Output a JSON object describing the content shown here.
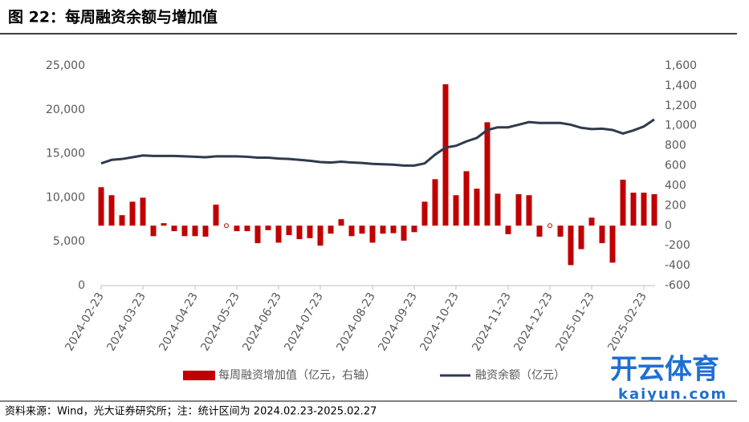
{
  "chart_data": {
    "type": "bar_line",
    "title": "图 22：每周融资余额与增加值",
    "source": "资料来源：Wind，光大证券研究所；注：统计区间为 2024.02.23-2025.02.27",
    "watermark": [
      "开云体育",
      "kaiyun.com"
    ],
    "categories": [
      "2024-02-23",
      null,
      null,
      null,
      "2024-03-23",
      null,
      null,
      null,
      null,
      "2024-04-23",
      null,
      null,
      null,
      "2024-05-23",
      null,
      null,
      null,
      "2024-06-23",
      null,
      null,
      null,
      "2024-07-23",
      null,
      null,
      null,
      null,
      "2024-08-23",
      null,
      null,
      null,
      "2024-09-23",
      null,
      null,
      null,
      "2024-10-23",
      null,
      null,
      null,
      null,
      "2024-11-23",
      null,
      null,
      null,
      "2024-12-23",
      null,
      null,
      null,
      "2025-01-23",
      null,
      null,
      null,
      null,
      "2025-02-23",
      null
    ],
    "series": [
      {
        "name": "每周融资增加值（亿元，右轴）",
        "color": "#c00000",
        "axis": "y2",
        "kind": "bar",
        "values": [
          385,
          305,
          105,
          240,
          280,
          -105,
          25,
          -55,
          -105,
          -105,
          -110,
          210,
          0,
          -55,
          -55,
          -175,
          -45,
          -170,
          -95,
          -135,
          -125,
          -200,
          -80,
          65,
          -105,
          -80,
          -170,
          -80,
          -75,
          -150,
          -65,
          240,
          465,
          1415,
          305,
          545,
          370,
          1035,
          320,
          -85,
          315,
          305,
          -110,
          0,
          -110,
          -395,
          -235,
          80,
          -175,
          -370,
          460,
          330,
          330,
          315
        ]
      },
      {
        "name": "融资余额（亿元）",
        "color": "#2e3a4e",
        "kind": "line",
        "values": [
          13900,
          14300,
          14400,
          14600,
          14800,
          14750,
          14750,
          14750,
          14700,
          14650,
          14600,
          14700,
          14700,
          14700,
          14650,
          14550,
          14550,
          14450,
          14400,
          14300,
          14200,
          14050,
          14000,
          14100,
          14000,
          13950,
          13850,
          13800,
          13750,
          13650,
          13650,
          13900,
          14900,
          15700,
          15900,
          16400,
          16800,
          17700,
          18000,
          18000,
          18300,
          18600,
          18500,
          18500,
          18500,
          18300,
          17950,
          17800,
          17850,
          17700,
          17300,
          17650,
          18100,
          18900
        ]
      }
    ],
    "ylim": [
      0,
      25000
    ],
    "yticks": [
      0,
      {
        "value": 5000,
        "label": "5,000"
      },
      {
        "value": 10000,
        "label": "10,000"
      },
      {
        "value": 15000,
        "label": "15,000"
      },
      {
        "value": 20000,
        "label": "20,000"
      },
      {
        "value": 25000,
        "label": "25,000"
      }
    ],
    "y2lim": [
      -600,
      1600
    ],
    "y2ticks": [
      -600,
      -400,
      -200,
      0,
      200,
      400,
      600,
      800,
      {
        "value": 1000,
        "label": "1,000"
      },
      {
        "value": 1200,
        "label": "1,200"
      },
      {
        "value": 1400,
        "label": "1,400"
      },
      {
        "value": 1600,
        "label": "1,600"
      }
    ]
  }
}
